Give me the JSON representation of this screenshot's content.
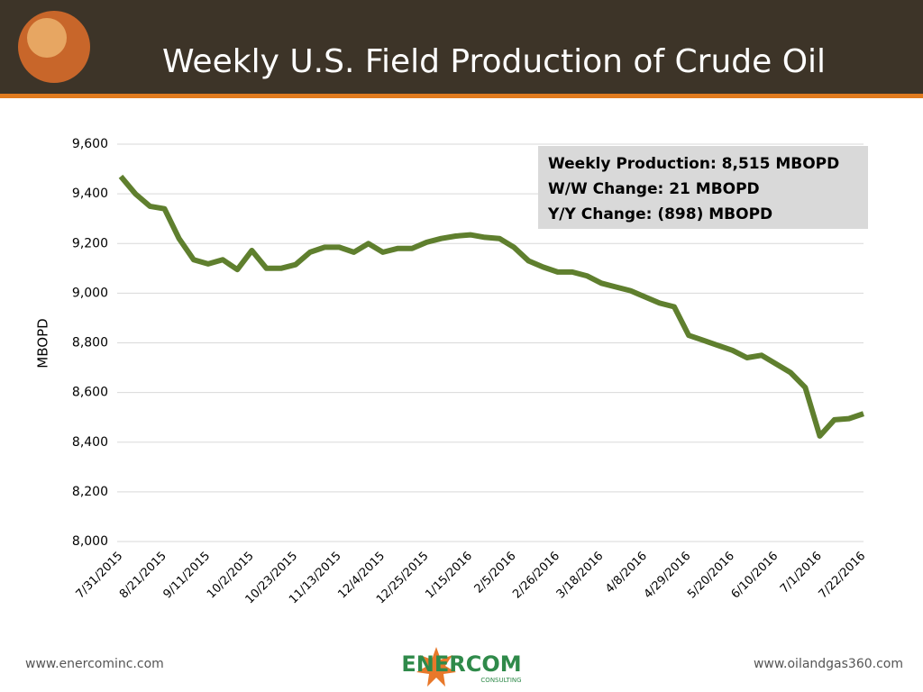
{
  "chart_data": {
    "type": "line",
    "title": "Weekly U.S. Field Production of Crude Oil",
    "y_label": "MBOPD",
    "categories": [
      "7/31/2015",
      null,
      null,
      "8/21/2015",
      null,
      null,
      "9/11/2015",
      null,
      null,
      "10/2/2015",
      null,
      null,
      "10/23/2015",
      null,
      null,
      "11/13/2015",
      null,
      null,
      "12/4/2015",
      null,
      null,
      "12/25/2015",
      null,
      null,
      "1/15/2016",
      null,
      null,
      "2/5/2016",
      null,
      null,
      "2/26/2016",
      null,
      null,
      "3/18/2016",
      null,
      null,
      "4/8/2016",
      null,
      null,
      "4/29/2016",
      null,
      null,
      "5/20/2016",
      null,
      null,
      "6/10/2016",
      null,
      null,
      "7/1/2016",
      null,
      null,
      "7/22/2016"
    ],
    "series": [
      {
        "name": "Weekly Production",
        "color": "#5f7f2e",
        "values": [
          9470,
          9400,
          9350,
          9340,
          9220,
          9135,
          9118,
          9135,
          9095,
          9172,
          9100,
          9100,
          9115,
          9165,
          9185,
          9185,
          9165,
          9200,
          9165,
          9180,
          9180,
          9205,
          9220,
          9230,
          9235,
          9225,
          9220,
          9185,
          9130,
          9105,
          9085,
          9085,
          9070,
          9040,
          9025,
          9010,
          8985,
          8960,
          8945,
          8830,
          8810,
          8790,
          8770,
          8740,
          8750,
          8715,
          8680,
          8620,
          8425,
          8490,
          8495,
          8515
        ]
      }
    ],
    "ylim": [
      8000,
      9600
    ],
    "yticks": [
      {
        "value": 8000,
        "label": "8,000"
      },
      {
        "value": 8200,
        "label": "8,200"
      },
      {
        "value": 8400,
        "label": "8,400"
      },
      {
        "value": 8600,
        "label": "8,600"
      },
      {
        "value": 8800,
        "label": "8,800"
      },
      {
        "value": 9000,
        "label": "9,000"
      },
      {
        "value": 9200,
        "label": "9,200"
      },
      {
        "value": 9400,
        "label": "9,400"
      },
      {
        "value": 9600,
        "label": "9,600"
      }
    ],
    "grid": true,
    "annotations": [
      "Weekly Production:  8,515 MBOPD",
      "W/W Change:  21 MBOPD",
      "Y/Y Change:  (898) MBOPD"
    ]
  },
  "footer": {
    "left": "www.enercominc.com",
    "logo": "ENERCOM",
    "logo_sub": "CONSULTING",
    "right": "www.oilandgas360.com"
  }
}
